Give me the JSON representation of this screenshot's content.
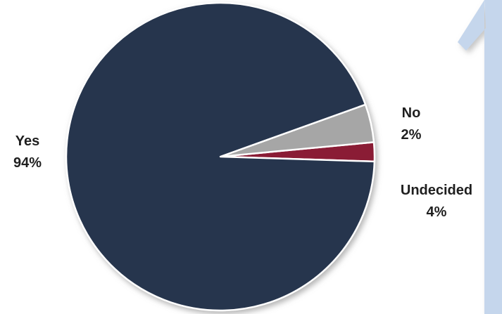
{
  "chart_data": {
    "type": "pie",
    "categories": [
      "No",
      "Undecided",
      "Yes"
    ],
    "values": [
      2,
      4,
      94
    ],
    "colors": [
      "#8a1c34",
      "#a6a6a6",
      "#25344d"
    ],
    "data_labels": [
      {
        "category": "No",
        "percent": "2%"
      },
      {
        "category": "Undecided",
        "percent": "4%"
      },
      {
        "category": "Yes",
        "percent": "94%"
      }
    ],
    "title": "",
    "legend": "none",
    "slice_border_color": "#ffffff"
  },
  "background_decoration": {
    "glyph": "1",
    "color": "#c5d6ec",
    "shadow_color": "#b8b8b8"
  }
}
